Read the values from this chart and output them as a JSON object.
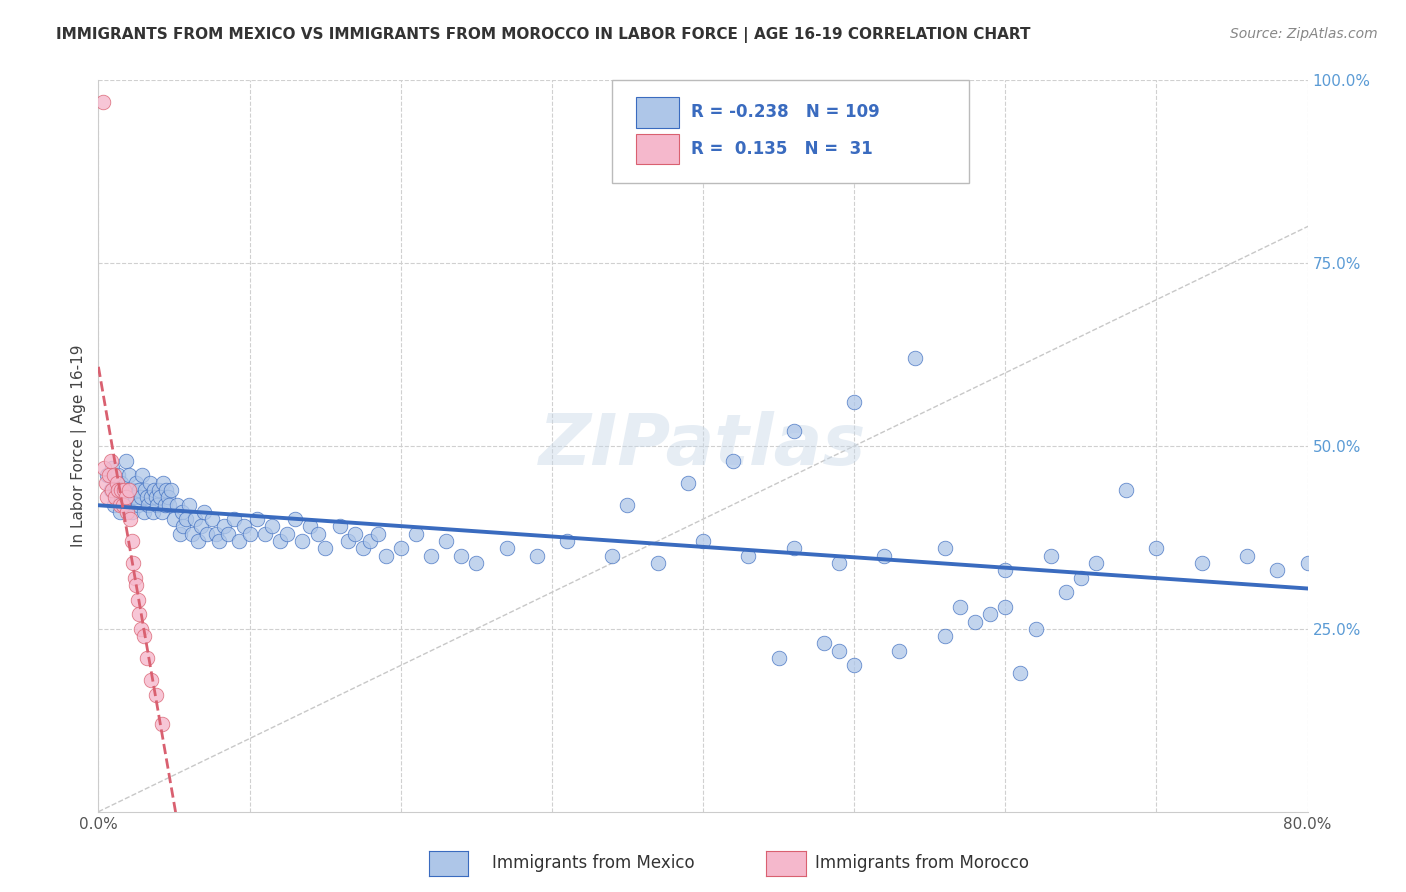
{
  "title": "IMMIGRANTS FROM MEXICO VS IMMIGRANTS FROM MOROCCO IN LABOR FORCE | AGE 16-19 CORRELATION CHART",
  "source": "Source: ZipAtlas.com",
  "ylabel": "In Labor Force | Age 16-19",
  "xlim": [
    0.0,
    0.8
  ],
  "ylim": [
    0.0,
    1.0
  ],
  "xticks": [
    0.0,
    0.1,
    0.2,
    0.3,
    0.4,
    0.5,
    0.6,
    0.7,
    0.8
  ],
  "xticklabels": [
    "0.0%",
    "",
    "",
    "",
    "",
    "",
    "",
    "",
    "80.0%"
  ],
  "yticks_right": [
    0.0,
    0.25,
    0.5,
    0.75,
    1.0
  ],
  "yticklabels_right": [
    "",
    "25.0%",
    "50.0%",
    "75.0%",
    "100.0%"
  ],
  "legend_R1": "-0.238",
  "legend_N1": "109",
  "legend_R2": "0.135",
  "legend_N2": "31",
  "color_mexico": "#aec6e8",
  "color_morocco": "#f5b8cc",
  "color_line_mexico": "#3a6bbf",
  "color_line_morocco": "#d96070",
  "watermark": "ZIPatlas",
  "mexico_x": [
    0.006,
    0.008,
    0.009,
    0.01,
    0.011,
    0.012,
    0.013,
    0.014,
    0.015,
    0.016,
    0.017,
    0.018,
    0.019,
    0.02,
    0.021,
    0.022,
    0.023,
    0.024,
    0.025,
    0.026,
    0.027,
    0.028,
    0.029,
    0.03,
    0.031,
    0.032,
    0.033,
    0.034,
    0.035,
    0.036,
    0.037,
    0.038,
    0.039,
    0.04,
    0.041,
    0.042,
    0.043,
    0.044,
    0.045,
    0.046,
    0.047,
    0.048,
    0.05,
    0.052,
    0.054,
    0.055,
    0.056,
    0.058,
    0.06,
    0.062,
    0.064,
    0.066,
    0.068,
    0.07,
    0.072,
    0.075,
    0.078,
    0.08,
    0.083,
    0.086,
    0.09,
    0.093,
    0.096,
    0.1,
    0.105,
    0.11,
    0.115,
    0.12,
    0.125,
    0.13,
    0.135,
    0.14,
    0.145,
    0.15,
    0.16,
    0.165,
    0.17,
    0.175,
    0.18,
    0.185,
    0.19,
    0.2,
    0.21,
    0.22,
    0.23,
    0.24,
    0.25,
    0.27,
    0.29,
    0.31,
    0.34,
    0.37,
    0.4,
    0.43,
    0.46,
    0.49,
    0.52,
    0.56,
    0.6,
    0.63,
    0.66,
    0.68,
    0.7,
    0.73,
    0.76,
    0.78,
    0.8,
    0.81,
    0.82
  ],
  "mexico_y": [
    0.46,
    0.44,
    0.47,
    0.42,
    0.44,
    0.43,
    0.46,
    0.41,
    0.45,
    0.44,
    0.43,
    0.48,
    0.42,
    0.46,
    0.43,
    0.41,
    0.44,
    0.43,
    0.45,
    0.42,
    0.44,
    0.43,
    0.46,
    0.41,
    0.44,
    0.43,
    0.42,
    0.45,
    0.43,
    0.41,
    0.44,
    0.43,
    0.42,
    0.44,
    0.43,
    0.41,
    0.45,
    0.42,
    0.44,
    0.43,
    0.42,
    0.44,
    0.4,
    0.42,
    0.38,
    0.41,
    0.39,
    0.4,
    0.42,
    0.38,
    0.4,
    0.37,
    0.39,
    0.41,
    0.38,
    0.4,
    0.38,
    0.37,
    0.39,
    0.38,
    0.4,
    0.37,
    0.39,
    0.38,
    0.4,
    0.38,
    0.39,
    0.37,
    0.38,
    0.4,
    0.37,
    0.39,
    0.38,
    0.36,
    0.39,
    0.37,
    0.38,
    0.36,
    0.37,
    0.38,
    0.35,
    0.36,
    0.38,
    0.35,
    0.37,
    0.35,
    0.34,
    0.36,
    0.35,
    0.37,
    0.35,
    0.34,
    0.37,
    0.35,
    0.36,
    0.34,
    0.35,
    0.36,
    0.33,
    0.35,
    0.34,
    0.44,
    0.36,
    0.34,
    0.35,
    0.33,
    0.34,
    0.36,
    0.43
  ],
  "mexico_y_extra": [
    0.56,
    0.62,
    0.52,
    0.45,
    0.42,
    0.48,
    0.2,
    0.22,
    0.24,
    0.23,
    0.21,
    0.26,
    0.19,
    0.25,
    0.28,
    0.22,
    0.3,
    0.27,
    0.32,
    0.28
  ],
  "mexico_x_extra": [
    0.5,
    0.54,
    0.46,
    0.39,
    0.35,
    0.42,
    0.5,
    0.53,
    0.56,
    0.48,
    0.45,
    0.58,
    0.61,
    0.62,
    0.57,
    0.49,
    0.64,
    0.59,
    0.65,
    0.6
  ],
  "morocco_x": [
    0.003,
    0.004,
    0.005,
    0.006,
    0.007,
    0.008,
    0.009,
    0.01,
    0.011,
    0.012,
    0.013,
    0.014,
    0.015,
    0.016,
    0.017,
    0.018,
    0.019,
    0.02,
    0.021,
    0.022,
    0.023,
    0.024,
    0.025,
    0.026,
    0.027,
    0.028,
    0.03,
    0.032,
    0.035,
    0.038,
    0.042
  ],
  "morocco_y": [
    0.97,
    0.47,
    0.45,
    0.43,
    0.46,
    0.48,
    0.44,
    0.46,
    0.43,
    0.45,
    0.44,
    0.42,
    0.44,
    0.42,
    0.44,
    0.43,
    0.41,
    0.44,
    0.4,
    0.37,
    0.34,
    0.32,
    0.31,
    0.29,
    0.27,
    0.25,
    0.24,
    0.21,
    0.18,
    0.16,
    0.12
  ]
}
